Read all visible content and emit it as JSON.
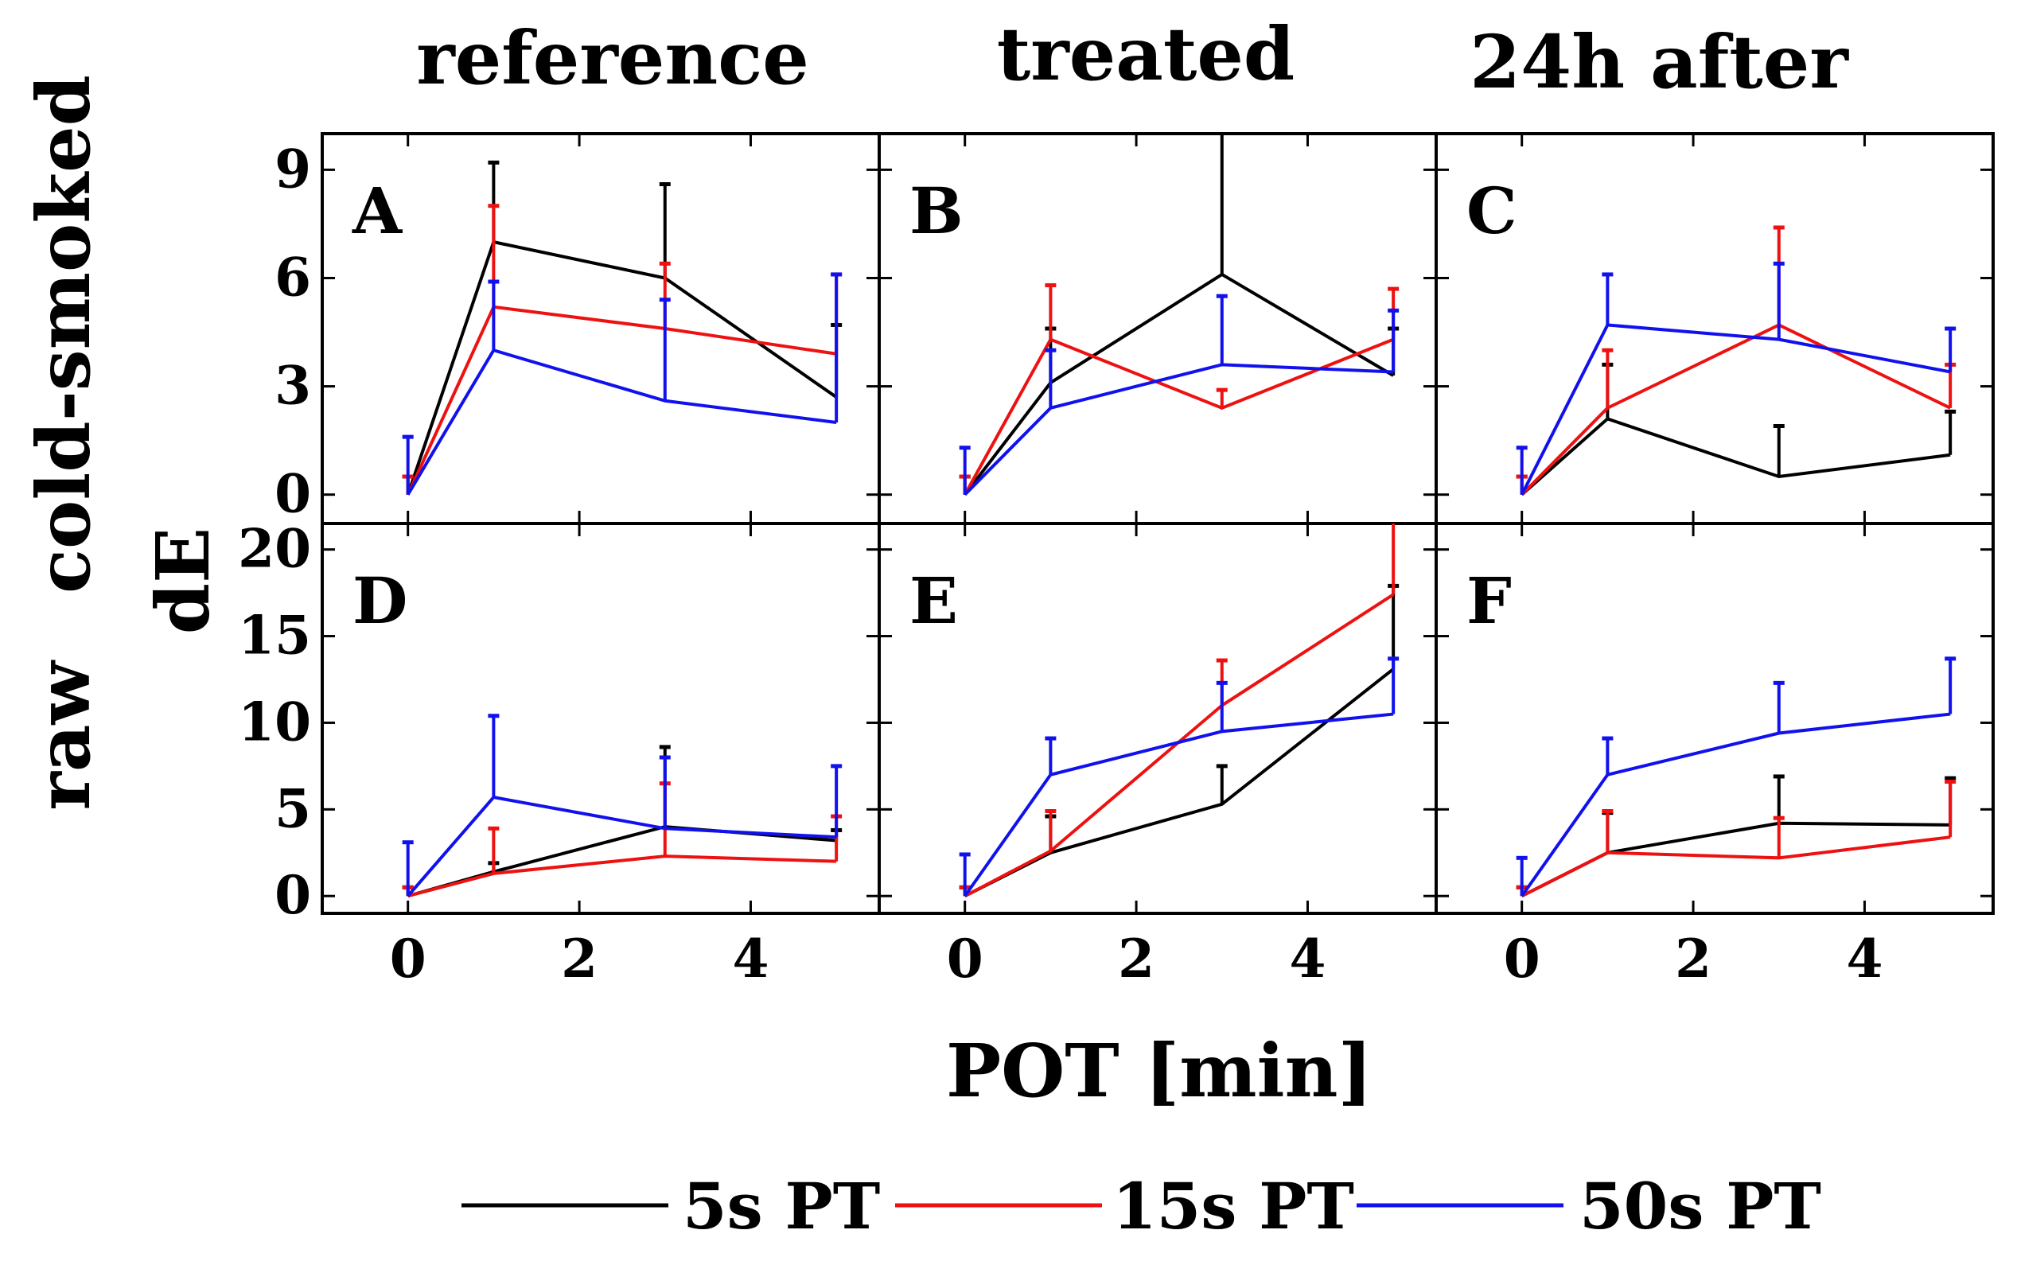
{
  "colors": {
    "5s PT": "#000000",
    "15s PT": "#ee1111",
    "50s PT": "#1111ee"
  },
  "labels": {
    "col_titles": [
      "reference",
      "treated",
      "24h after"
    ],
    "row_titles": [
      "cold-smoked",
      "raw"
    ],
    "ylabel": "dE",
    "xlabel": "POT [min]"
  },
  "legend": [
    {
      "name": "5s PT",
      "color": "#000000"
    },
    {
      "name": "15s PT",
      "color": "#ee1111"
    },
    {
      "name": "50s PT",
      "color": "#1111ee"
    }
  ],
  "chart_data": {
    "type": "line",
    "x": [
      0,
      1,
      3,
      5
    ],
    "xlim": [
      -1,
      5.5
    ],
    "xticks": [
      0,
      2,
      4
    ],
    "xlabel": "POT [min]",
    "ylabel": "dE",
    "rows": [
      {
        "title": "cold-smoked",
        "ylim": [
          -0.8,
          10
        ],
        "yticks": [
          0,
          3,
          6,
          9
        ]
      },
      {
        "title": "raw",
        "ylim": [
          -1,
          21.5
        ],
        "yticks": [
          0,
          5,
          10,
          15,
          20
        ]
      }
    ],
    "panels": [
      {
        "letter": "A",
        "row": 0,
        "col": 0,
        "series": [
          {
            "name": "5s PT",
            "values": [
              0,
              7.0,
              6.0,
              2.7
            ],
            "errors": [
              0.5,
              2.2,
              2.6,
              2.0
            ]
          },
          {
            "name": "15s PT",
            "values": [
              0,
              5.2,
              4.6,
              3.9
            ],
            "errors": [
              0.5,
              2.8,
              1.8,
              2.2
            ]
          },
          {
            "name": "50s PT",
            "values": [
              0,
              4.0,
              2.6,
              2.0
            ],
            "errors": [
              1.6,
              1.9,
              2.8,
              4.1
            ]
          }
        ]
      },
      {
        "letter": "B",
        "row": 0,
        "col": 1,
        "series": [
          {
            "name": "5s PT",
            "values": [
              0,
              3.1,
              6.1,
              3.3
            ],
            "errors": [
              0.5,
              1.5,
              4.2,
              1.3
            ]
          },
          {
            "name": "15s PT",
            "values": [
              0,
              4.3,
              2.4,
              4.3
            ],
            "errors": [
              0.5,
              1.5,
              0.5,
              1.4
            ]
          },
          {
            "name": "50s PT",
            "values": [
              0,
              2.4,
              3.6,
              3.4
            ],
            "errors": [
              1.3,
              1.6,
              1.9,
              1.7
            ]
          }
        ]
      },
      {
        "letter": "C",
        "row": 0,
        "col": 2,
        "series": [
          {
            "name": "5s PT",
            "values": [
              0,
              2.1,
              0.5,
              1.1
            ],
            "errors": [
              0.5,
              1.5,
              1.4,
              1.2
            ]
          },
          {
            "name": "15s PT",
            "values": [
              0,
              2.4,
              4.7,
              2.4
            ],
            "errors": [
              0.5,
              1.6,
              2.7,
              1.2
            ]
          },
          {
            "name": "50s PT",
            "values": [
              0,
              4.7,
              4.3,
              3.4
            ],
            "errors": [
              1.3,
              1.4,
              2.1,
              1.2
            ]
          }
        ]
      },
      {
        "letter": "D",
        "row": 1,
        "col": 0,
        "series": [
          {
            "name": "5s PT",
            "values": [
              0,
              1.4,
              4.0,
              3.2
            ],
            "errors": [
              0.5,
              0.5,
              4.6,
              0.6
            ]
          },
          {
            "name": "15s PT",
            "values": [
              0,
              1.3,
              2.3,
              2.0
            ],
            "errors": [
              0.5,
              2.6,
              4.2,
              2.6
            ]
          },
          {
            "name": "50s PT",
            "values": [
              0,
              5.7,
              3.9,
              3.4
            ],
            "errors": [
              3.1,
              4.7,
              4.1,
              4.1
            ]
          }
        ]
      },
      {
        "letter": "E",
        "row": 1,
        "col": 1,
        "series": [
          {
            "name": "5s PT",
            "values": [
              0,
              2.5,
              5.3,
              13.1
            ],
            "errors": [
              0.5,
              2.1,
              2.2,
              4.8
            ]
          },
          {
            "name": "15s PT",
            "values": [
              0,
              2.6,
              11.0,
              17.4
            ],
            "errors": [
              0.5,
              2.3,
              2.6,
              4.4
            ]
          },
          {
            "name": "50s PT",
            "values": [
              0,
              7.0,
              9.5,
              10.5
            ],
            "errors": [
              2.4,
              2.1,
              2.8,
              3.2
            ]
          }
        ]
      },
      {
        "letter": "F",
        "row": 1,
        "col": 2,
        "series": [
          {
            "name": "5s PT",
            "values": [
              0,
              2.5,
              4.2,
              4.1
            ],
            "errors": [
              0.5,
              2.3,
              2.7,
              2.7
            ]
          },
          {
            "name": "15s PT",
            "values": [
              0,
              2.5,
              2.2,
              3.4
            ],
            "errors": [
              0.5,
              2.4,
              2.3,
              3.2
            ]
          },
          {
            "name": "50s PT",
            "values": [
              0,
              7.0,
              9.4,
              10.5
            ],
            "errors": [
              2.2,
              2.1,
              2.9,
              3.2
            ]
          }
        ]
      }
    ]
  }
}
